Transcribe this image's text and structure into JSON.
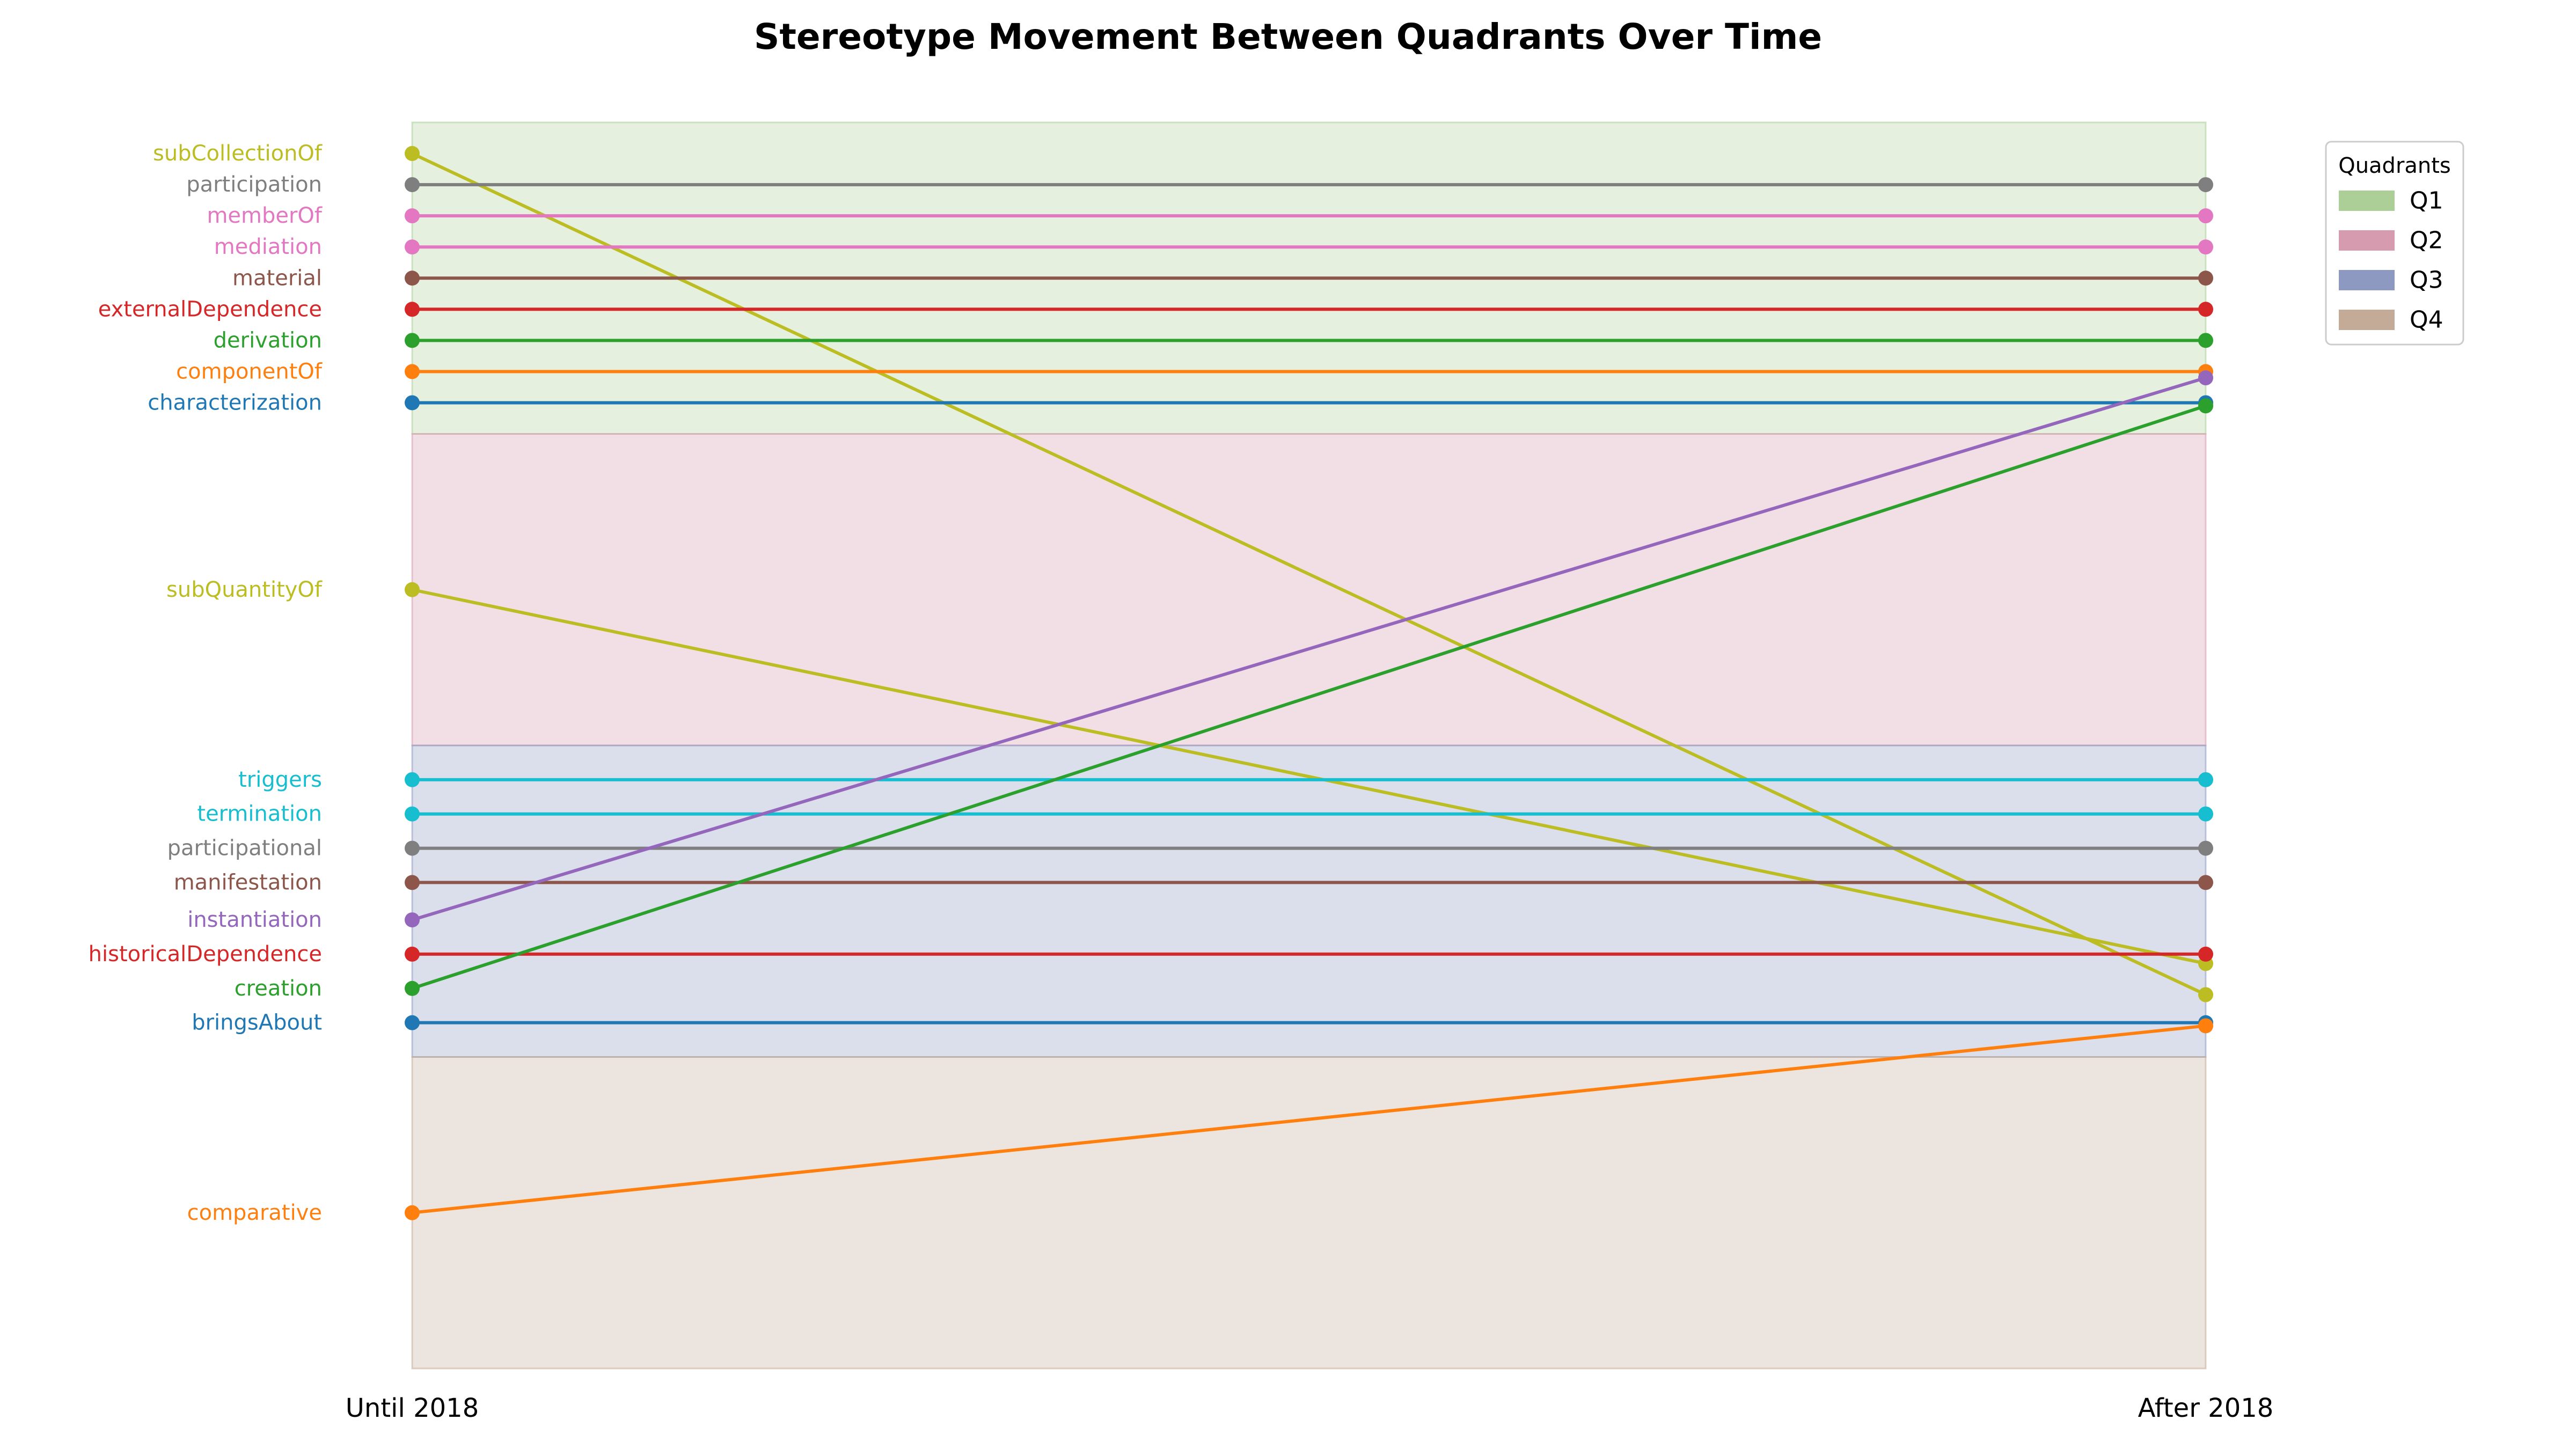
{
  "chart_data": {
    "type": "slope",
    "title": "Stereotype Movement Between Quadrants Over Time",
    "x_categories": [
      "Until 2018",
      "After 2018"
    ],
    "quadrants": [
      {
        "name": "Q1",
        "color": "#a8cc91"
      },
      {
        "name": "Q2",
        "color": "#d496ab"
      },
      {
        "name": "Q3",
        "color": "#8793bd"
      },
      {
        "name": "Q4",
        "color": "#c0a791"
      }
    ],
    "legend": {
      "title": "Quadrants",
      "placement": "upper-right"
    },
    "y_range": [
      0,
      4
    ],
    "series": [
      {
        "name": "subCollectionOf",
        "color": "#bcbd22",
        "from": 3.9,
        "to": 1.2
      },
      {
        "name": "participation",
        "color": "#7f7f7f",
        "from": 3.8,
        "to": 3.8
      },
      {
        "name": "memberOf",
        "color": "#e377c2",
        "from": 3.7,
        "to": 3.7
      },
      {
        "name": "mediation",
        "color": "#e377c2",
        "from": 3.6,
        "to": 3.6
      },
      {
        "name": "material",
        "color": "#8c564b",
        "from": 3.5,
        "to": 3.5
      },
      {
        "name": "externalDependence",
        "color": "#d62728",
        "from": 3.4,
        "to": 3.4
      },
      {
        "name": "derivation",
        "color": "#2ca02c",
        "from": 3.3,
        "to": 3.3
      },
      {
        "name": "componentOf",
        "color": "#ff7f0e",
        "from": 3.2,
        "to": 3.2
      },
      {
        "name": "characterization",
        "color": "#1f77b4",
        "from": 3.1,
        "to": 3.1
      },
      {
        "name": "subQuantityOf",
        "color": "#bcbd22",
        "from": 2.5,
        "to": 1.3
      },
      {
        "name": "triggers",
        "color": "#17becf",
        "from": 1.89,
        "to": 1.89
      },
      {
        "name": "termination",
        "color": "#17becf",
        "from": 1.78,
        "to": 1.78
      },
      {
        "name": "participational",
        "color": "#7f7f7f",
        "from": 1.67,
        "to": 1.67
      },
      {
        "name": "manifestation",
        "color": "#8c564b",
        "from": 1.56,
        "to": 1.56
      },
      {
        "name": "instantiation",
        "color": "#9467bd",
        "from": 1.44,
        "to": 3.18
      },
      {
        "name": "historicalDependence",
        "color": "#d62728",
        "from": 1.33,
        "to": 1.33
      },
      {
        "name": "creation",
        "color": "#2ca02c",
        "from": 1.22,
        "to": 3.09
      },
      {
        "name": "bringsAbout",
        "color": "#1f77b4",
        "from": 1.11,
        "to": 1.11
      },
      {
        "name": "comparative",
        "color": "#ff7f0e",
        "from": 0.5,
        "to": 1.1
      }
    ]
  }
}
